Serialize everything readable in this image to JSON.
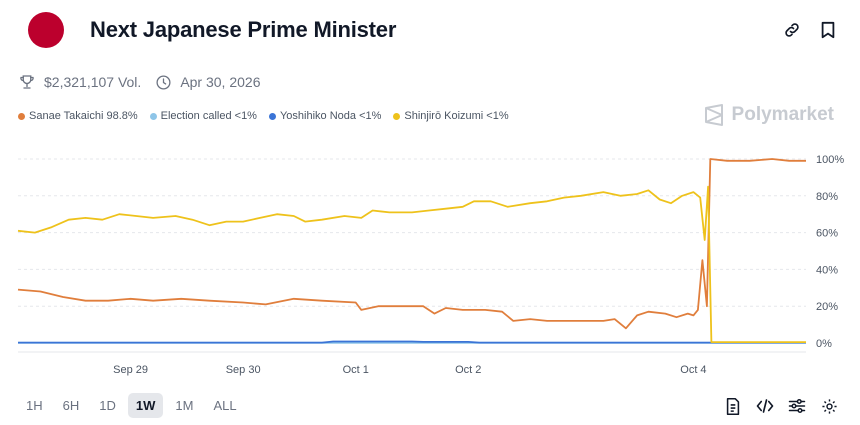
{
  "header": {
    "title": "Next Japanese Prime Minister"
  },
  "meta": {
    "volume": "$2,321,107 Vol.",
    "end_date": "Apr 30, 2026"
  },
  "brand": {
    "name": "Polymarket"
  },
  "icons": {
    "link": "link-icon",
    "bookmark": "bookmark-icon",
    "trophy": "trophy-icon",
    "clock": "clock-icon",
    "embed": "code-icon",
    "document": "document-icon",
    "settings": "sliders-icon",
    "gear": "gear-icon"
  },
  "legend": [
    {
      "label": "Sanae Takaichi 98.8%",
      "color": "#e07e3c"
    },
    {
      "label": "Election called <1%",
      "color": "#8ec5e8"
    },
    {
      "label": "Yoshihiko Noda <1%",
      "color": "#3b74d6"
    },
    {
      "label": "Shinjirō Koizumi <1%",
      "color": "#eec21b"
    }
  ],
  "ranges": [
    "1H",
    "6H",
    "1D",
    "1W",
    "1M",
    "ALL"
  ],
  "active_range": "1W",
  "chart_data": {
    "type": "line",
    "xlabel": "",
    "ylabel": "",
    "x_ticks": [
      {
        "label": "Sep 29",
        "x": 1.0
      },
      {
        "label": "Sep 30",
        "x": 2.0
      },
      {
        "label": "Oct 1",
        "x": 3.0
      },
      {
        "label": "Oct 2",
        "x": 4.0
      },
      {
        "label": "Oct 4",
        "x": 6.0
      }
    ],
    "x_range": [
      0.0,
      7.0
    ],
    "y_ticks": [
      "0%",
      "20%",
      "40%",
      "60%",
      "80%",
      "100%"
    ],
    "ylim": [
      0,
      100
    ],
    "grid": "horizontal dashed",
    "legend_position": "top-left",
    "series": [
      {
        "name": "Shinjirō Koizumi",
        "color": "#eec21b",
        "points": [
          [
            0.0,
            61
          ],
          [
            0.15,
            60
          ],
          [
            0.3,
            63
          ],
          [
            0.45,
            67
          ],
          [
            0.6,
            68
          ],
          [
            0.75,
            67
          ],
          [
            0.9,
            70
          ],
          [
            1.05,
            69
          ],
          [
            1.2,
            68
          ],
          [
            1.4,
            69
          ],
          [
            1.55,
            67
          ],
          [
            1.7,
            64
          ],
          [
            1.85,
            66
          ],
          [
            2.0,
            66
          ],
          [
            2.15,
            68
          ],
          [
            2.3,
            70
          ],
          [
            2.45,
            69
          ],
          [
            2.55,
            66
          ],
          [
            2.7,
            67
          ],
          [
            2.9,
            69
          ],
          [
            3.05,
            68
          ],
          [
            3.15,
            72
          ],
          [
            3.3,
            71
          ],
          [
            3.5,
            71
          ],
          [
            3.65,
            72
          ],
          [
            3.8,
            73
          ],
          [
            3.95,
            74
          ],
          [
            4.05,
            77
          ],
          [
            4.2,
            77
          ],
          [
            4.35,
            74
          ],
          [
            4.55,
            76
          ],
          [
            4.7,
            77
          ],
          [
            4.85,
            79
          ],
          [
            5.0,
            80
          ],
          [
            5.2,
            82
          ],
          [
            5.35,
            80
          ],
          [
            5.5,
            81
          ],
          [
            5.6,
            83
          ],
          [
            5.7,
            78
          ],
          [
            5.8,
            76
          ],
          [
            5.9,
            80
          ],
          [
            6.0,
            82
          ],
          [
            6.06,
            79
          ],
          [
            6.1,
            56
          ],
          [
            6.13,
            85
          ],
          [
            6.16,
            0.5
          ],
          [
            6.5,
            0.5
          ],
          [
            7.0,
            0.5
          ]
        ]
      },
      {
        "name": "Sanae Takaichi",
        "color": "#e07e3c",
        "points": [
          [
            0.0,
            29
          ],
          [
            0.2,
            28
          ],
          [
            0.4,
            25
          ],
          [
            0.6,
            23
          ],
          [
            0.8,
            23
          ],
          [
            1.0,
            24
          ],
          [
            1.2,
            23
          ],
          [
            1.45,
            24
          ],
          [
            1.7,
            23
          ],
          [
            2.0,
            22
          ],
          [
            2.2,
            21
          ],
          [
            2.45,
            24
          ],
          [
            2.7,
            23
          ],
          [
            3.0,
            22
          ],
          [
            3.05,
            18
          ],
          [
            3.2,
            20
          ],
          [
            3.4,
            20
          ],
          [
            3.6,
            20
          ],
          [
            3.7,
            16
          ],
          [
            3.8,
            19
          ],
          [
            3.95,
            18
          ],
          [
            4.15,
            18
          ],
          [
            4.3,
            17
          ],
          [
            4.4,
            12
          ],
          [
            4.55,
            13
          ],
          [
            4.7,
            12
          ],
          [
            4.85,
            12
          ],
          [
            5.0,
            12
          ],
          [
            5.2,
            12
          ],
          [
            5.3,
            13
          ],
          [
            5.4,
            8
          ],
          [
            5.5,
            15
          ],
          [
            5.6,
            17
          ],
          [
            5.75,
            16
          ],
          [
            5.85,
            14
          ],
          [
            5.95,
            16
          ],
          [
            6.0,
            15
          ],
          [
            6.04,
            18
          ],
          [
            6.08,
            45
          ],
          [
            6.12,
            20
          ],
          [
            6.15,
            100
          ],
          [
            6.3,
            99
          ],
          [
            6.5,
            99
          ],
          [
            6.7,
            100
          ],
          [
            6.85,
            99
          ],
          [
            7.0,
            99
          ]
        ]
      },
      {
        "name": "Yoshihiko Noda",
        "color": "#3b74d6",
        "points": [
          [
            0.0,
            0.2
          ],
          [
            2.7,
            0.2
          ],
          [
            2.8,
            0.8
          ],
          [
            3.5,
            0.8
          ],
          [
            3.6,
            0.6
          ],
          [
            4.0,
            0.6
          ],
          [
            4.1,
            0.2
          ],
          [
            7.0,
            0.2
          ]
        ]
      },
      {
        "name": "Election called",
        "color": "#8ec5e8",
        "points": [
          [
            0.0,
            0.1
          ],
          [
            7.0,
            0.1
          ]
        ]
      }
    ]
  }
}
